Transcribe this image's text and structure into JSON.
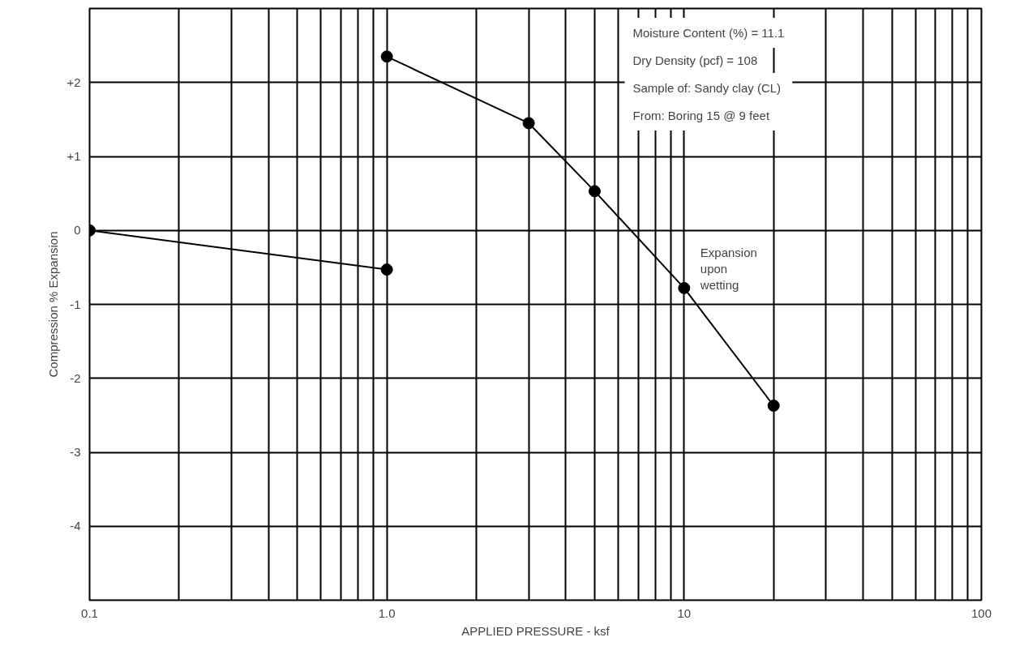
{
  "chart_data": {
    "type": "line",
    "xlabel": "APPLIED PRESSURE - ksf",
    "ylabel": "Compression % Expansion",
    "log": "x",
    "xlim": [
      0.1,
      100
    ],
    "xticks": [
      0.1,
      {
        "value": 1,
        "label": "1.0"
      },
      10,
      100
    ],
    "ylim": [
      -5,
      3
    ],
    "yticks": [
      {
        "value": 2,
        "label": "+2"
      },
      {
        "value": 1,
        "label": "+1"
      },
      0,
      -1,
      -2,
      -3,
      -4
    ],
    "grid": true,
    "marker": "circle",
    "line_style": "solid",
    "series": [
      {
        "color": "#000000",
        "x": [
          0.1,
          1.0
        ],
        "values": [
          0,
          -0.53
        ]
      },
      {
        "color": "#000000",
        "x": [
          1.0,
          3.0,
          5.0,
          10,
          20
        ],
        "values": [
          2.35,
          1.45,
          0.53,
          -0.78,
          -2.37
        ]
      }
    ],
    "annotations": [
      "Moisture Content (%)  =  11.1",
      "Dry Density (pcf)  =  108",
      "Sample of:  Sandy clay (CL)",
      "From:  Boring 15 @ 9 feet",
      {
        "text": "Expansion\nupon\nwetting",
        "x": 10,
        "y": -0.78
      }
    ]
  }
}
